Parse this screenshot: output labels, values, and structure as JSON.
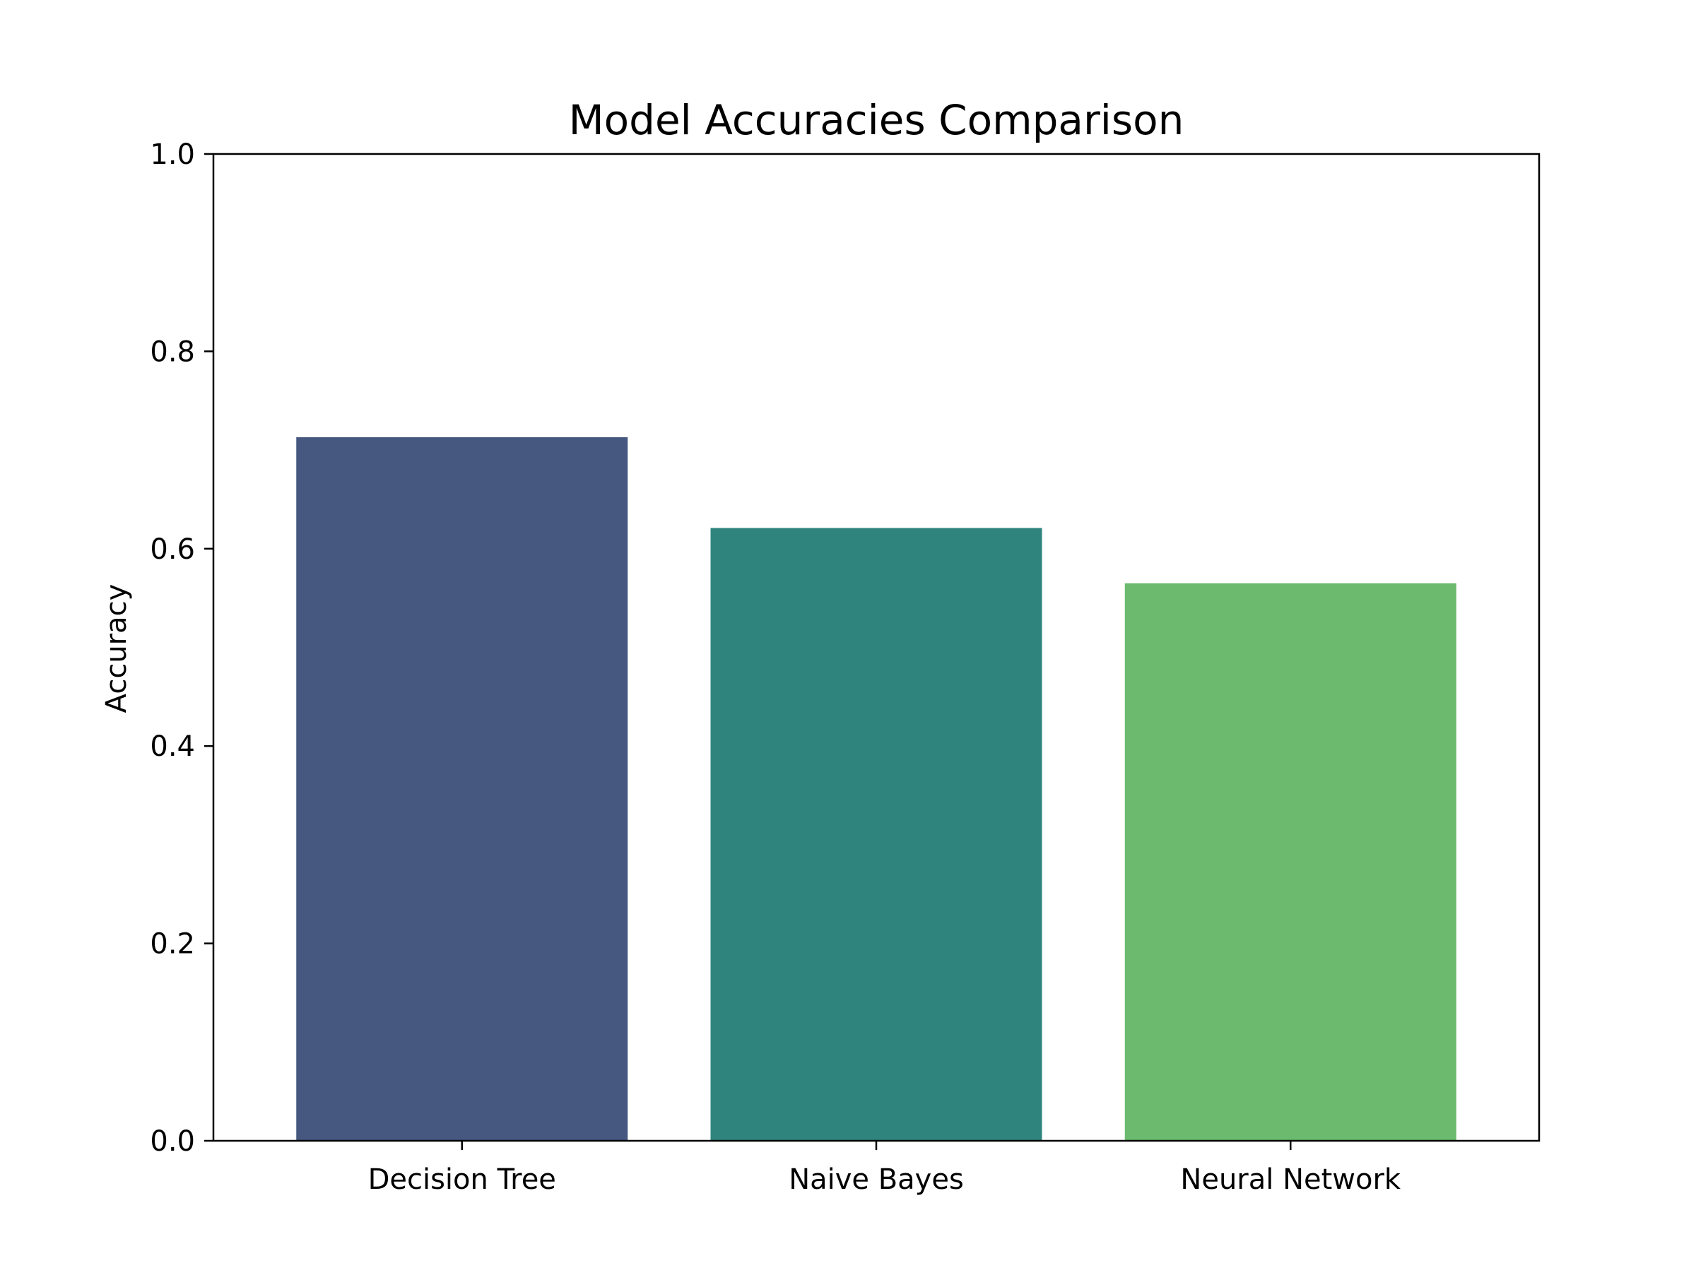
{
  "chart_data": {
    "type": "bar",
    "title": "Model Accuracies Comparison",
    "xlabel": "",
    "ylabel": "Accuracy",
    "categories": [
      "Decision Tree",
      "Naive Bayes",
      "Neural Network"
    ],
    "values": [
      0.713,
      0.621,
      0.565
    ],
    "colors": [
      "#46587f",
      "#2f857e",
      "#6bba6d"
    ],
    "ylim": [
      0,
      1.0
    ],
    "yticks": [
      0.0,
      0.2,
      0.4,
      0.6,
      0.8,
      1.0
    ],
    "ytick_labels": [
      "0.0",
      "0.2",
      "0.4",
      "0.6",
      "0.8",
      "1.0"
    ],
    "grid": false,
    "legend": "none"
  }
}
